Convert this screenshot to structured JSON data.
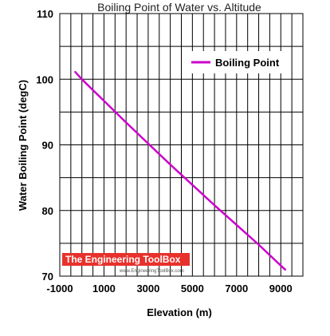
{
  "chart_data": {
    "type": "line",
    "title": "Boiling Point of Water vs. Altitude",
    "xlabel": "Elevation (m)",
    "ylabel": "Water Boiling Point (degC)",
    "xlim": [
      -1000,
      10000
    ],
    "ylim": [
      70,
      110
    ],
    "x_ticks": [
      -1000,
      1000,
      3000,
      5000,
      7000,
      9000
    ],
    "y_ticks": [
      70,
      80,
      90,
      100,
      110
    ],
    "x_tick_labels": [
      "-1000",
      "1000",
      "3000",
      "5000",
      "7000",
      "9000"
    ],
    "y_tick_labels": [
      "70",
      "80",
      "90",
      "100",
      "110"
    ],
    "grid": true,
    "legend_position": "top-right",
    "series": [
      {
        "name": "Boiling Point",
        "color": "#cc00cc",
        "x": [
          -300,
          0,
          1000,
          2000,
          3000,
          4000,
          5000,
          6000,
          7000,
          8000,
          9000,
          9200
        ],
        "y": [
          101.1,
          100.0,
          96.7,
          93.4,
          90.2,
          87.0,
          83.9,
          80.8,
          77.8,
          74.8,
          71.6,
          71.0
        ]
      }
    ]
  },
  "watermark": {
    "text": "The Engineering ToolBox",
    "url": "www.EngineeringToolBox.com",
    "color": "#e8312c"
  }
}
